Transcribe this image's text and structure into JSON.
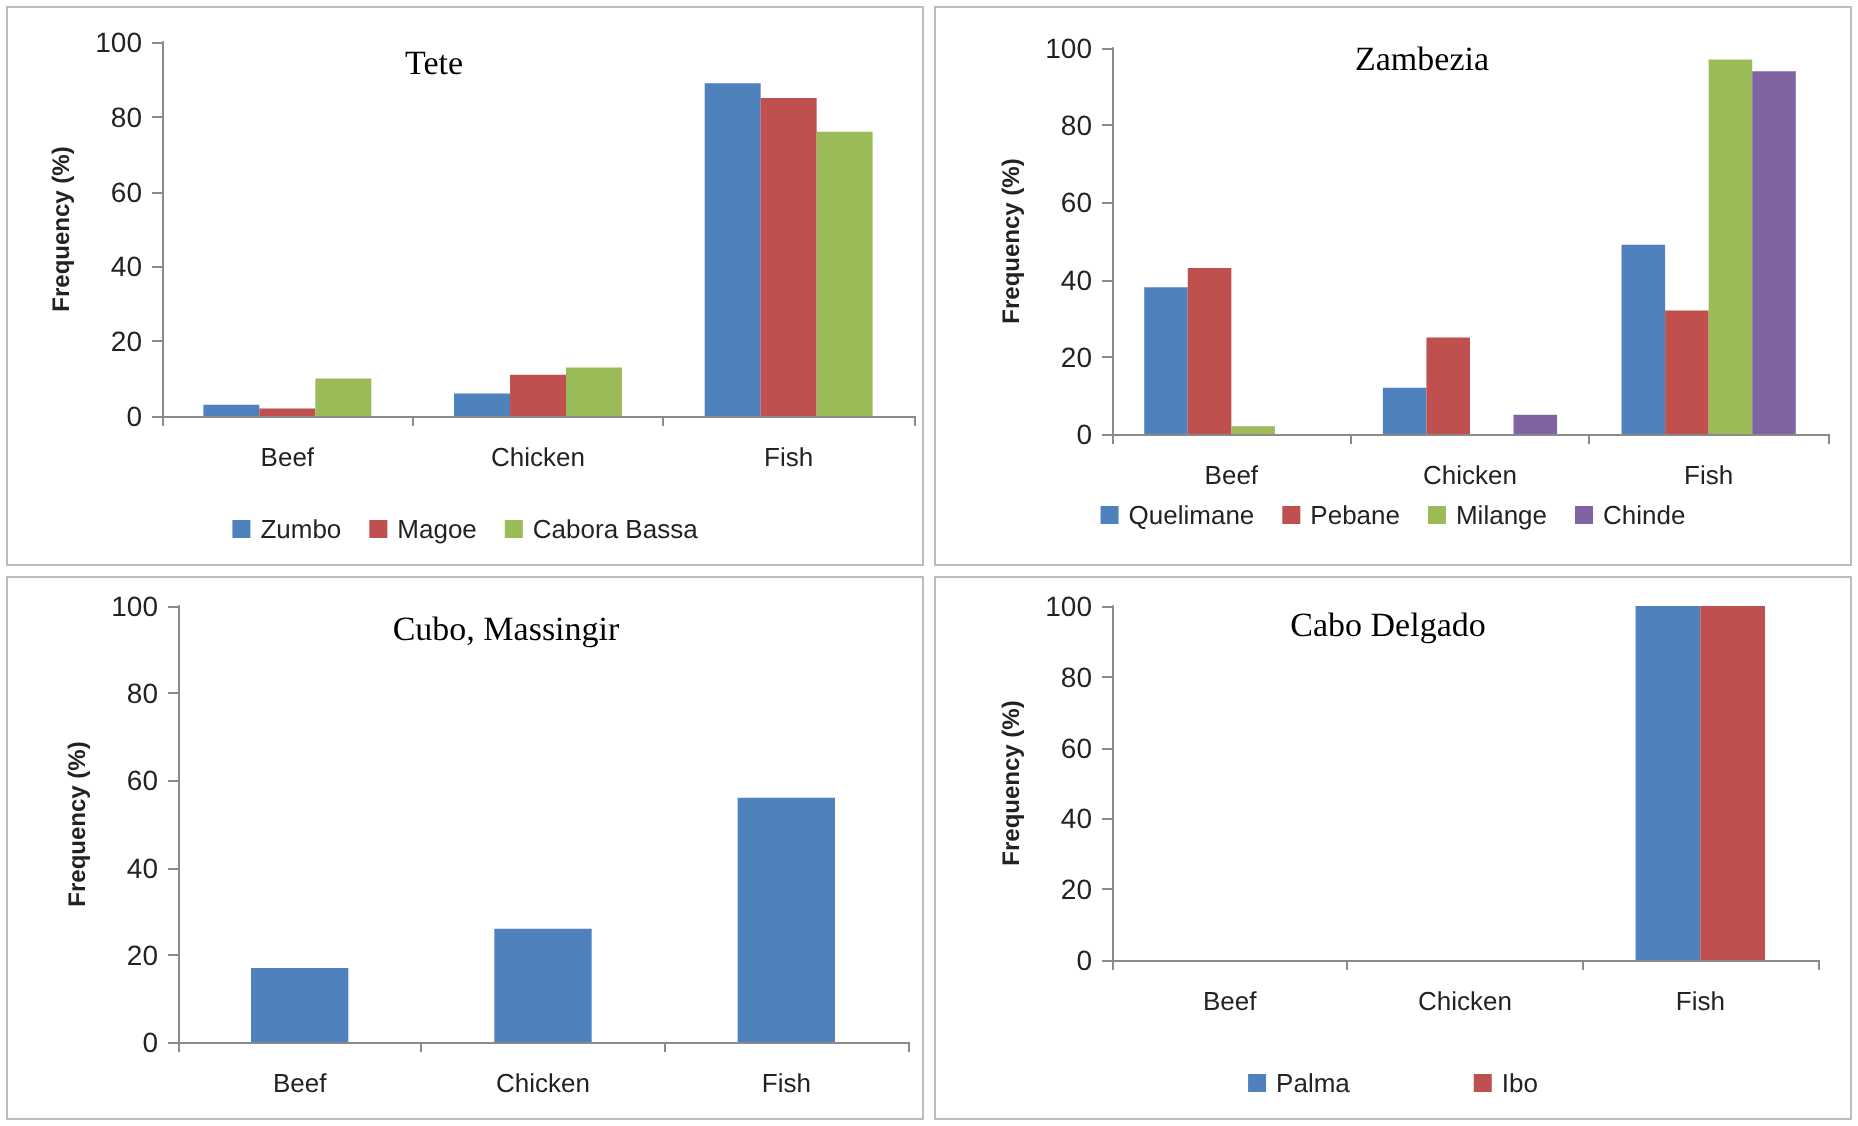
{
  "chart_data": [
    {
      "type": "bar",
      "title": "Tete",
      "ylabel": "Frequency (%)",
      "categories": [
        "Beef",
        "Chicken",
        "Fish"
      ],
      "ylim": [
        0,
        100
      ],
      "yticks": [
        0,
        20,
        40,
        60,
        80,
        100
      ],
      "legend": "bottom",
      "series": [
        {
          "name": "Zumbo",
          "color": "#4f81bd",
          "values": [
            3,
            6,
            89
          ]
        },
        {
          "name": "Magoe",
          "color": "#c0504d",
          "values": [
            2,
            11,
            85
          ]
        },
        {
          "name": "Cabora Bassa",
          "color": "#9bbb59",
          "values": [
            10,
            13,
            76
          ]
        }
      ]
    },
    {
      "type": "bar",
      "title": "Zambezia",
      "ylabel": "Frequency (%)",
      "categories": [
        "Beef",
        "Chicken",
        "Fish"
      ],
      "ylim": [
        0,
        100
      ],
      "yticks": [
        0,
        20,
        40,
        60,
        80,
        100
      ],
      "legend": "bottom",
      "series": [
        {
          "name": "Quelimane",
          "color": "#4f81bd",
          "values": [
            38,
            12,
            49
          ]
        },
        {
          "name": "Pebane",
          "color": "#c0504d",
          "values": [
            43,
            25,
            32
          ]
        },
        {
          "name": "Milange",
          "color": "#9bbb59",
          "values": [
            2,
            0,
            97
          ]
        },
        {
          "name": "Chinde",
          "color": "#8064a2",
          "values": [
            0,
            5,
            94
          ]
        }
      ]
    },
    {
      "type": "bar",
      "title": "Cubo, Massingir",
      "ylabel": "Frequency (%)",
      "categories": [
        "Beef",
        "Chicken",
        "Fish"
      ],
      "ylim": [
        0,
        100
      ],
      "yticks": [
        0,
        20,
        40,
        60,
        80,
        100
      ],
      "series": [
        {
          "color": "#4f81bd",
          "values": [
            17,
            26,
            56
          ]
        }
      ]
    },
    {
      "type": "bar",
      "title": "Cabo Delgado",
      "ylabel": "Frequency (%)",
      "categories": [
        "Beef",
        "Chicken",
        "Fish"
      ],
      "ylim": [
        0,
        100
      ],
      "yticks": [
        0,
        20,
        40,
        60,
        80,
        100
      ],
      "legend": "bottom",
      "series": [
        {
          "name": "Palma",
          "color": "#4f81bd",
          "values": [
            0,
            0,
            100
          ]
        },
        {
          "name": "Ibo",
          "color": "#c0504d",
          "values": [
            0,
            0,
            100
          ]
        }
      ]
    }
  ]
}
